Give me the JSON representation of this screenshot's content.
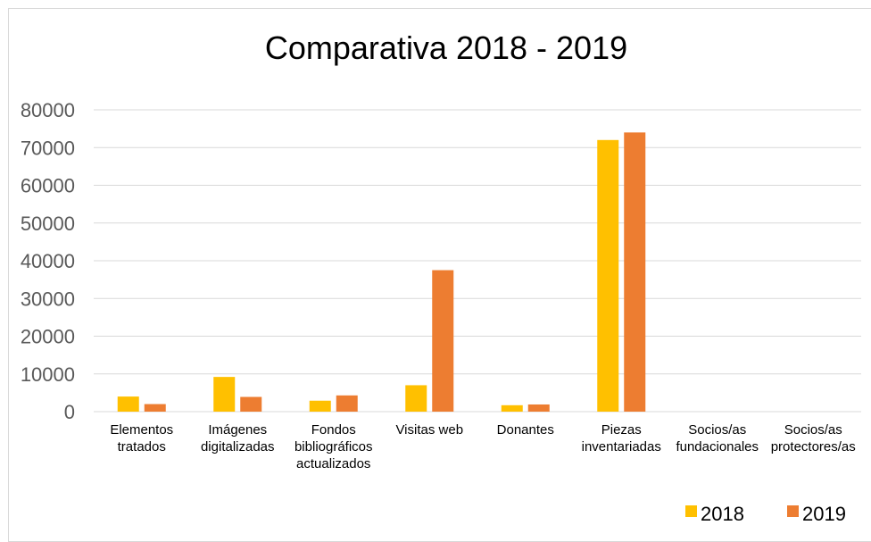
{
  "chart_data": {
    "type": "bar",
    "title": "Comparativa 2018 - 2019",
    "xlabel": "",
    "ylabel": "",
    "ylim": [
      0,
      80000
    ],
    "yticks": [
      "0",
      "10000",
      "20000",
      "30000",
      "40000",
      "50000",
      "60000",
      "70000",
      "80000"
    ],
    "grid": true,
    "legend_position": "bottom-right",
    "categories": [
      [
        "Elementos",
        "tratados"
      ],
      [
        "Imágenes",
        "digitalizadas"
      ],
      [
        "Fondos",
        "bibliográficos",
        "actualizados"
      ],
      [
        "Visitas web"
      ],
      [
        "Donantes"
      ],
      [
        "Piezas",
        "inventariadas"
      ],
      [
        "Socios/as",
        "fundacionales"
      ],
      [
        "Socios/as",
        "protectores/as"
      ]
    ],
    "series": [
      {
        "name": "2018",
        "color": "#FFC000",
        "values": [
          4000,
          9200,
          2900,
          7000,
          1700,
          72000,
          0,
          0
        ]
      },
      {
        "name": "2019",
        "color": "#ED7D31",
        "values": [
          2000,
          3900,
          4300,
          37500,
          1900,
          74000,
          0,
          0
        ]
      }
    ],
    "colors": {
      "grid": "#d9d9d9",
      "tick_text": "#595959",
      "title_text": "#000000",
      "category_text": "#000000"
    }
  }
}
